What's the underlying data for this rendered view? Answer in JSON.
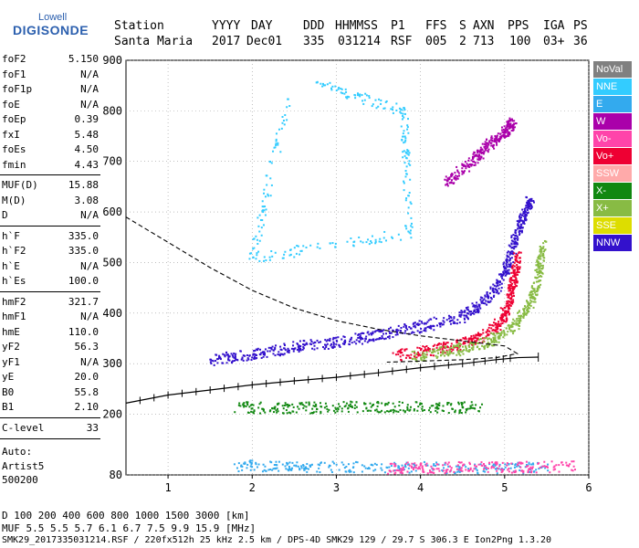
{
  "logo": {
    "top": "Lowell",
    "main": "DIGISONDE"
  },
  "header": {
    "labels": [
      "Station",
      "YYYY",
      "DAY",
      "DDD",
      "HHMMSS",
      "P1",
      "FFS",
      "S",
      "AXN",
      "PPS",
      "IGA",
      "PS"
    ],
    "values": [
      "Santa Maria",
      "2017",
      "Dec01",
      "335",
      "031214",
      "RSF",
      "005",
      "2",
      "713",
      "100",
      "03+",
      "36"
    ]
  },
  "parameters": {
    "group1": [
      {
        "name": "foF2",
        "value": "5.150"
      },
      {
        "name": "foF1",
        "value": "N/A"
      },
      {
        "name": "foF1p",
        "value": "N/A"
      },
      {
        "name": "foE",
        "value": "N/A"
      },
      {
        "name": "foEp",
        "value": "0.39"
      },
      {
        "name": "fxI",
        "value": "5.48"
      },
      {
        "name": "foEs",
        "value": "4.50"
      },
      {
        "name": "fmin",
        "value": "4.43"
      }
    ],
    "group2": [
      {
        "name": "MUF(D)",
        "value": "15.88"
      },
      {
        "name": "M(D)",
        "value": "3.08"
      },
      {
        "name": "D",
        "value": "N/A"
      }
    ],
    "group3": [
      {
        "name": "h`F",
        "value": "335.0"
      },
      {
        "name": "h`F2",
        "value": "335.0"
      },
      {
        "name": "h`E",
        "value": "N/A"
      },
      {
        "name": "h`Es",
        "value": "100.0"
      }
    ],
    "group4": [
      {
        "name": "hmF2",
        "value": "321.7"
      },
      {
        "name": "hmF1",
        "value": "N/A"
      },
      {
        "name": "hmE",
        "value": "110.0"
      },
      {
        "name": "yF2",
        "value": "56.3"
      },
      {
        "name": "yF1",
        "value": "N/A"
      },
      {
        "name": "yE",
        "value": "20.0"
      },
      {
        "name": "B0",
        "value": "55.8"
      },
      {
        "name": "B1",
        "value": "2.10"
      }
    ],
    "group5": [
      {
        "name": "C-level",
        "value": "33"
      }
    ]
  },
  "autoscaling": {
    "label": "Auto:",
    "artist": "Artist5",
    "version": "500200"
  },
  "legend": [
    {
      "label": "NoVal",
      "color": "#808080"
    },
    {
      "label": "NNE",
      "color": "#33ccff"
    },
    {
      "label": "E",
      "color": "#33aaee"
    },
    {
      "label": "W",
      "color": "#aa00aa"
    },
    {
      "label": "Vo-",
      "color": "#ff44aa"
    },
    {
      "label": "Vo+",
      "color": "#ee0033"
    },
    {
      "label": "SSW",
      "color": "#ffaaaa"
    },
    {
      "label": "X-",
      "color": "#118811"
    },
    {
      "label": "X+",
      "color": "#88bb44"
    },
    {
      "label": "SSE",
      "color": "#dddd00"
    },
    {
      "label": "NNW",
      "color": "#3311cc"
    }
  ],
  "footer": {
    "d_row": "D     100  200  400  600  800 1000 1500 3000 [km]",
    "muf_row": "MUF    5.5  5.5  5.7  6.1  6.7  7.5  9.9 15.9 [MHz]",
    "info": "SMK29_2017335031214.RSF / 220fx512h 25 kHz 2.5 km / DPS-4D SMK29 129 / 29.7 S 306.3 E Ion2Png 1.3.20"
  },
  "chart_data": {
    "type": "scatter",
    "xlim": [
      0.5,
      6.0
    ],
    "ylim": [
      80,
      900
    ],
    "x_ticks": [
      1,
      2,
      3,
      4,
      5,
      6
    ],
    "y_ticks": [
      80,
      200,
      300,
      400,
      500,
      600,
      700,
      800,
      900
    ],
    "x_tick_labels": [
      "1",
      "2",
      "3",
      "4",
      "5",
      "6"
    ],
    "y_tick_labels": [
      "80",
      "200",
      "300",
      "400",
      "500",
      "600",
      "700",
      "800",
      "900"
    ],
    "grid": true,
    "legend_position": "right",
    "traces": {
      "profile_solid": [
        [
          0.5,
          222
        ],
        [
          1.0,
          238
        ],
        [
          1.5,
          248
        ],
        [
          2.0,
          258
        ],
        [
          2.5,
          266
        ],
        [
          3.0,
          273
        ],
        [
          3.5,
          282
        ],
        [
          4.0,
          292
        ],
        [
          4.5,
          300
        ],
        [
          4.9,
          308
        ],
        [
          5.15,
          312
        ]
      ],
      "profile_top": [
        [
          5.15,
          312
        ],
        [
          5.4,
          313
        ]
      ],
      "bottomside_dashed": [
        [
          0.5,
          590
        ],
        [
          1.0,
          540
        ],
        [
          1.5,
          490
        ],
        [
          2.0,
          445
        ],
        [
          2.5,
          410
        ],
        [
          3.0,
          385
        ],
        [
          3.5,
          368
        ],
        [
          4.0,
          355
        ],
        [
          4.5,
          345
        ],
        [
          5.0,
          335
        ],
        [
          5.15,
          320
        ],
        [
          4.9,
          312
        ],
        [
          4.5,
          308
        ],
        [
          4.0,
          305
        ],
        [
          3.6,
          303
        ]
      ]
    },
    "echo_bands": [
      {
        "name": "NNW",
        "color": "#3311cc",
        "points": [
          [
            1.5,
            308
          ],
          [
            2.0,
            320
          ],
          [
            2.5,
            335
          ],
          [
            3.0,
            345
          ],
          [
            3.5,
            358
          ],
          [
            4.0,
            375
          ],
          [
            4.5,
            395
          ],
          [
            4.8,
            430
          ],
          [
            5.0,
            480
          ],
          [
            5.1,
            540
          ],
          [
            5.2,
            590
          ],
          [
            5.3,
            630
          ]
        ]
      },
      {
        "name": "W",
        "color": "#aa00aa",
        "points": [
          [
            4.3,
            660
          ],
          [
            4.6,
            700
          ],
          [
            4.8,
            735
          ],
          [
            5.0,
            760
          ],
          [
            5.1,
            780
          ]
        ]
      },
      {
        "name": "Vo+",
        "color": "#ee0033",
        "points": [
          [
            3.7,
            318
          ],
          [
            4.2,
            330
          ],
          [
            4.6,
            345
          ],
          [
            4.9,
            375
          ],
          [
            5.05,
            420
          ],
          [
            5.1,
            470
          ],
          [
            5.15,
            520
          ]
        ]
      },
      {
        "name": "X+",
        "color": "#88bb44",
        "points": [
          [
            3.9,
            315
          ],
          [
            4.4,
            328
          ],
          [
            4.8,
            345
          ],
          [
            5.1,
            375
          ],
          [
            5.3,
            420
          ],
          [
            5.4,
            480
          ],
          [
            5.45,
            540
          ]
        ]
      },
      {
        "name": "E",
        "color": "#33aaee",
        "points": [
          [
            1.8,
            100
          ],
          [
            2.5,
            98
          ],
          [
            3.5,
            97
          ],
          [
            4.5,
            96
          ],
          [
            5.5,
            95
          ]
        ]
      },
      {
        "name": "Vo-",
        "color": "#ff44aa",
        "points": [
          [
            3.6,
            95
          ],
          [
            4.2,
            96
          ],
          [
            5.0,
            97
          ],
          [
            5.8,
            98
          ]
        ]
      },
      {
        "name": "X-",
        "color": "#118811",
        "points": [
          [
            1.8,
            215
          ],
          [
            2.5,
            214
          ],
          [
            3.2,
            216
          ],
          [
            4.0,
            215
          ],
          [
            4.7,
            215
          ]
        ]
      },
      {
        "name": "NNE",
        "color": "#33ccff",
        "points": [
          [
            2.7,
            860
          ],
          [
            3.8,
            800
          ],
          [
            3.85,
            560
          ],
          [
            2.0,
            510
          ],
          [
            2.4,
            820
          ]
        ]
      }
    ]
  }
}
